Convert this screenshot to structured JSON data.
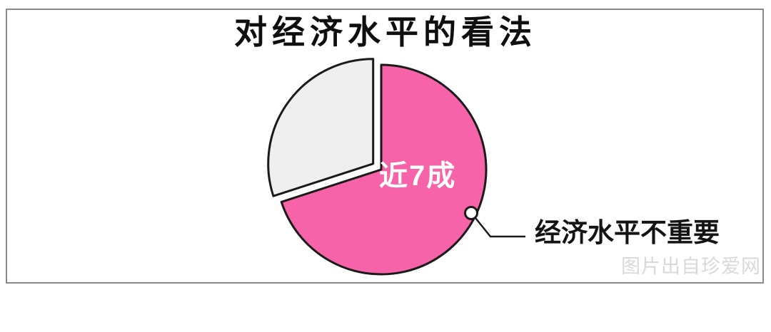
{
  "chart_data": {
    "type": "pie",
    "title": "对经济水平的看法",
    "slices": [
      {
        "label": "经济水平不重要",
        "value_text": "近7成",
        "value_pct": 70,
        "color": "#f763a8",
        "exploded": false
      },
      {
        "value_pct": 30,
        "color": "#efefef",
        "exploded": true
      }
    ],
    "outline_color": "#1a1a1a",
    "legend": "none"
  },
  "watermark": "图片出自珍爱网",
  "colors": {
    "accent_pink": "#f763a8",
    "slice_gray": "#efefef",
    "outline": "#1a1a1a",
    "card_border": "#8a8a8a",
    "watermark_gray": "#d9d9d9",
    "slice_value_text": "#ffffff"
  }
}
